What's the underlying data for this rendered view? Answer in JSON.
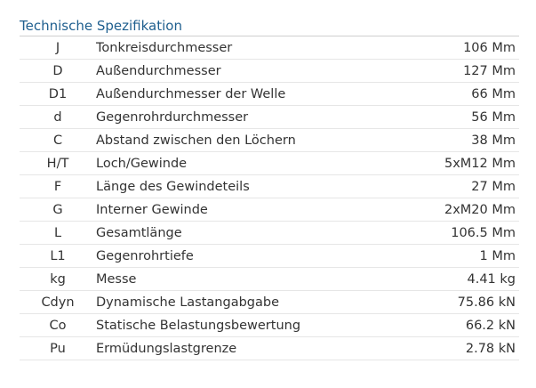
{
  "title": "Technische Spezifikation",
  "table": {
    "rows": [
      [
        "J",
        "Tonkreisdurchmesser",
        "106 Mm"
      ],
      [
        "D",
        "Außendurchmesser",
        "127 Mm"
      ],
      [
        "D1",
        "Außendurchmesser der Welle",
        "66 Mm"
      ],
      [
        "d",
        "Gegenrohrdurchmesser",
        "56 Mm"
      ],
      [
        "C",
        "Abstand zwischen den Löchern",
        "38 Mm"
      ],
      [
        "H/T",
        "Loch/Gewinde",
        "5xM12 Mm"
      ],
      [
        "F",
        "Länge des Gewindeteils",
        "27 Mm"
      ],
      [
        "G",
        "Interner Gewinde",
        "2xM20 Mm"
      ],
      [
        "L",
        "Gesamtlänge",
        "106.5 Mm"
      ],
      [
        "L1",
        "Gegenrohrtiefe",
        "1 Mm"
      ],
      [
        "kg",
        "Messe",
        "4.41 kg"
      ],
      [
        "Cdyn",
        "Dynamische Lastangabgabe",
        "75.86 kN"
      ],
      [
        "Co",
        "Statische Belastungsbewertung",
        "66.2 kN"
      ],
      [
        "Pu",
        "Ermüdungslastgrenze",
        "2.78 kN"
      ]
    ]
  }
}
